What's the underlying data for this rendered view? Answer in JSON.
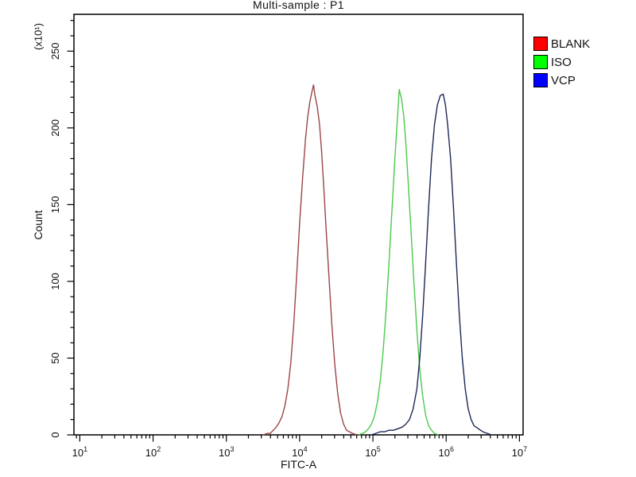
{
  "chart_data": {
    "type": "line",
    "subtype": "flow-cytometry-histogram-overlay",
    "title": "Multi-sample : P1",
    "xlabel": "FITC-A",
    "ylabel": "Count",
    "y_multiplier_label": "(x10¹)",
    "x_scale": "log10",
    "xlim_log10": [
      0.92,
      7.05
    ],
    "x_tick_exponents": [
      1,
      2,
      3,
      4,
      5,
      6,
      7
    ],
    "ylim": [
      0,
      274
    ],
    "y_major_ticks": [
      0,
      50,
      100,
      150,
      200,
      250
    ],
    "y_minor_step": 10,
    "y_minor_max": 270,
    "grid": false,
    "legend_position": "right-outside",
    "frame_color": "#000000",
    "series": [
      {
        "name": "BLANK",
        "legend_color": "#ff0000",
        "curve_color": "#9c4448",
        "peak": {
          "x_approx": "1.5e4",
          "peak_count_x10": 228
        },
        "points_log10x_count": [
          [
            3.5,
            0
          ],
          [
            3.56,
            1
          ],
          [
            3.6,
            1
          ],
          [
            3.64,
            3
          ],
          [
            3.68,
            5
          ],
          [
            3.72,
            8
          ],
          [
            3.76,
            12
          ],
          [
            3.8,
            19
          ],
          [
            3.84,
            30
          ],
          [
            3.88,
            47
          ],
          [
            3.92,
            72
          ],
          [
            3.96,
            104
          ],
          [
            4.0,
            138
          ],
          [
            4.04,
            167
          ],
          [
            4.08,
            193
          ],
          [
            4.11,
            207
          ],
          [
            4.14,
            217
          ],
          [
            4.17,
            224
          ],
          [
            4.19,
            228
          ],
          [
            4.21,
            221
          ],
          [
            4.24,
            214
          ],
          [
            4.27,
            203
          ],
          [
            4.3,
            185
          ],
          [
            4.33,
            161
          ],
          [
            4.36,
            135
          ],
          [
            4.4,
            103
          ],
          [
            4.44,
            72
          ],
          [
            4.48,
            46
          ],
          [
            4.52,
            27
          ],
          [
            4.56,
            14
          ],
          [
            4.6,
            7
          ],
          [
            4.64,
            3
          ],
          [
            4.68,
            2
          ],
          [
            4.72,
            1
          ],
          [
            4.78,
            0
          ]
        ]
      },
      {
        "name": "ISO",
        "legend_color": "#00ff00",
        "curve_color": "#4cc94c",
        "peak": {
          "x_approx": "2.3e5",
          "peak_count_x10": 225
        },
        "points_log10x_count": [
          [
            4.8,
            0
          ],
          [
            4.86,
            1
          ],
          [
            4.9,
            2
          ],
          [
            4.94,
            4
          ],
          [
            4.98,
            7
          ],
          [
            5.02,
            12
          ],
          [
            5.06,
            21
          ],
          [
            5.1,
            35
          ],
          [
            5.14,
            55
          ],
          [
            5.18,
            81
          ],
          [
            5.22,
            112
          ],
          [
            5.26,
            146
          ],
          [
            5.3,
            180
          ],
          [
            5.33,
            203
          ],
          [
            5.36,
            225
          ],
          [
            5.39,
            219
          ],
          [
            5.42,
            208
          ],
          [
            5.45,
            190
          ],
          [
            5.48,
            166
          ],
          [
            5.52,
            133
          ],
          [
            5.56,
            99
          ],
          [
            5.6,
            68
          ],
          [
            5.64,
            43
          ],
          [
            5.68,
            25
          ],
          [
            5.72,
            13
          ],
          [
            5.76,
            6
          ],
          [
            5.8,
            3
          ],
          [
            5.84,
            1
          ],
          [
            5.9,
            0
          ]
        ]
      },
      {
        "name": "VCP",
        "legend_color": "#0000ff",
        "curve_color": "#1e2756",
        "peak": {
          "x_approx": "9e5",
          "peak_count_x10": 222
        },
        "points_log10x_count": [
          [
            4.98,
            0
          ],
          [
            5.04,
            1
          ],
          [
            5.1,
            2
          ],
          [
            5.16,
            2
          ],
          [
            5.22,
            3
          ],
          [
            5.28,
            3
          ],
          [
            5.34,
            4
          ],
          [
            5.4,
            5
          ],
          [
            5.45,
            7
          ],
          [
            5.5,
            10
          ],
          [
            5.55,
            17
          ],
          [
            5.6,
            30
          ],
          [
            5.64,
            50
          ],
          [
            5.68,
            78
          ],
          [
            5.72,
            112
          ],
          [
            5.76,
            148
          ],
          [
            5.8,
            180
          ],
          [
            5.84,
            202
          ],
          [
            5.88,
            215
          ],
          [
            5.92,
            221
          ],
          [
            5.96,
            222
          ],
          [
            5.99,
            215
          ],
          [
            6.02,
            202
          ],
          [
            6.06,
            180
          ],
          [
            6.1,
            148
          ],
          [
            6.14,
            112
          ],
          [
            6.18,
            78
          ],
          [
            6.22,
            50
          ],
          [
            6.26,
            30
          ],
          [
            6.3,
            17
          ],
          [
            6.34,
            10
          ],
          [
            6.38,
            6
          ],
          [
            6.44,
            4
          ],
          [
            6.5,
            2
          ],
          [
            6.56,
            1
          ],
          [
            6.62,
            0
          ]
        ]
      }
    ]
  },
  "legend": {
    "items": [
      {
        "label": "BLANK",
        "color": "#ff0000"
      },
      {
        "label": "ISO",
        "color": "#00ff00"
      },
      {
        "label": "VCP",
        "color": "#0000ff"
      }
    ]
  }
}
